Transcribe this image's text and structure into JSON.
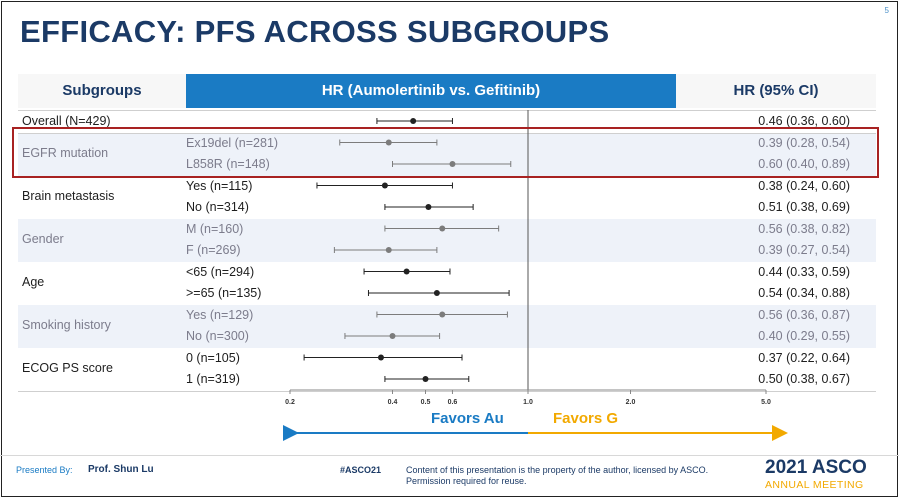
{
  "slide_number": "5",
  "title": "EFFICACY: PFS ACROSS SUBGROUPS",
  "headers": {
    "subgroups": "Subgroups",
    "hr_comparison": "HR (Aumolertinib vs. Gefitinib)",
    "hr_ci": "HR (95% CI)"
  },
  "chart_data": {
    "type": "forest",
    "title": "PFS across subgroups",
    "xlabel": "",
    "x_scale": "log",
    "xlim": [
      0.2,
      5.0
    ],
    "reference_line": 1.0,
    "x_ticks": [
      0.2,
      0.4,
      0.5,
      0.6,
      1.0,
      2.0,
      5.0
    ],
    "x_tick_labels": [
      "0.2",
      "0.4",
      "0.5",
      "0.6",
      "1.0",
      "2.0",
      "5.0"
    ],
    "favors_left": "Favors Au",
    "favors_right": "Favors G",
    "rows": [
      {
        "group": "Overall (N=429)",
        "subgroup": "",
        "hr": 0.46,
        "lo": 0.36,
        "hi": 0.6,
        "hr_text": "0.46 (0.36, 0.60)"
      },
      {
        "group": "EGFR mutation",
        "subgroup": "Ex19del (n=281)",
        "hr": 0.39,
        "lo": 0.28,
        "hi": 0.54,
        "hr_text": "0.39 (0.28, 0.54)"
      },
      {
        "group": "",
        "subgroup": "L858R (n=148)",
        "hr": 0.6,
        "lo": 0.4,
        "hi": 0.89,
        "hr_text": "0.60 (0.40, 0.89)"
      },
      {
        "group": "Brain metastasis",
        "subgroup": "Yes (n=115)",
        "hr": 0.38,
        "lo": 0.24,
        "hi": 0.6,
        "hr_text": "0.38 (0.24, 0.60)"
      },
      {
        "group": "",
        "subgroup": "No (n=314)",
        "hr": 0.51,
        "lo": 0.38,
        "hi": 0.69,
        "hr_text": "0.51 (0.38, 0.69)"
      },
      {
        "group": "Gender",
        "subgroup": "M (n=160)",
        "hr": 0.56,
        "lo": 0.38,
        "hi": 0.82,
        "hr_text": "0.56 (0.38, 0.82)"
      },
      {
        "group": "",
        "subgroup": "F (n=269)",
        "hr": 0.39,
        "lo": 0.27,
        "hi": 0.54,
        "hr_text": "0.39 (0.27, 0.54)"
      },
      {
        "group": "Age",
        "subgroup": "<65 (n=294)",
        "hr": 0.44,
        "lo": 0.33,
        "hi": 0.59,
        "hr_text": "0.44 (0.33, 0.59)"
      },
      {
        "group": "",
        "subgroup": ">=65 (n=135)",
        "hr": 0.54,
        "lo": 0.34,
        "hi": 0.88,
        "hr_text": "0.54 (0.34, 0.88)"
      },
      {
        "group": "Smoking history",
        "subgroup": "Yes (n=129)",
        "hr": 0.56,
        "lo": 0.36,
        "hi": 0.87,
        "hr_text": "0.56 (0.36, 0.87)"
      },
      {
        "group": "",
        "subgroup": "No (n=300)",
        "hr": 0.4,
        "lo": 0.29,
        "hi": 0.55,
        "hr_text": "0.40 (0.29, 0.55)"
      },
      {
        "group": "ECOG PS score",
        "subgroup": "0 (n=105)",
        "hr": 0.37,
        "lo": 0.22,
        "hi": 0.64,
        "hr_text": "0.37 (0.22, 0.64)"
      },
      {
        "group": "",
        "subgroup": "1 (n=319)",
        "hr": 0.5,
        "lo": 0.38,
        "hi": 0.67,
        "hr_text": "0.50 (0.38, 0.67)"
      }
    ]
  },
  "footer": {
    "presented_by_label": "Presented By:",
    "presenter": "Prof. Shun Lu",
    "hashtag": "#ASCO21",
    "disclaimer_line1": "Content of this presentation is the property of the author, licensed by ASCO.",
    "disclaimer_line2": "Permission required for reuse.",
    "asco_year": "2021 ASCO",
    "asco_sub": "ANNUAL MEETING"
  },
  "colors": {
    "title": "#1b3a66",
    "header_blue": "#1a7bc4",
    "band": "#eef2f9",
    "highlight_red": "#a82222",
    "favors_au": "#1a7bc4",
    "favors_g": "#f2a900"
  }
}
